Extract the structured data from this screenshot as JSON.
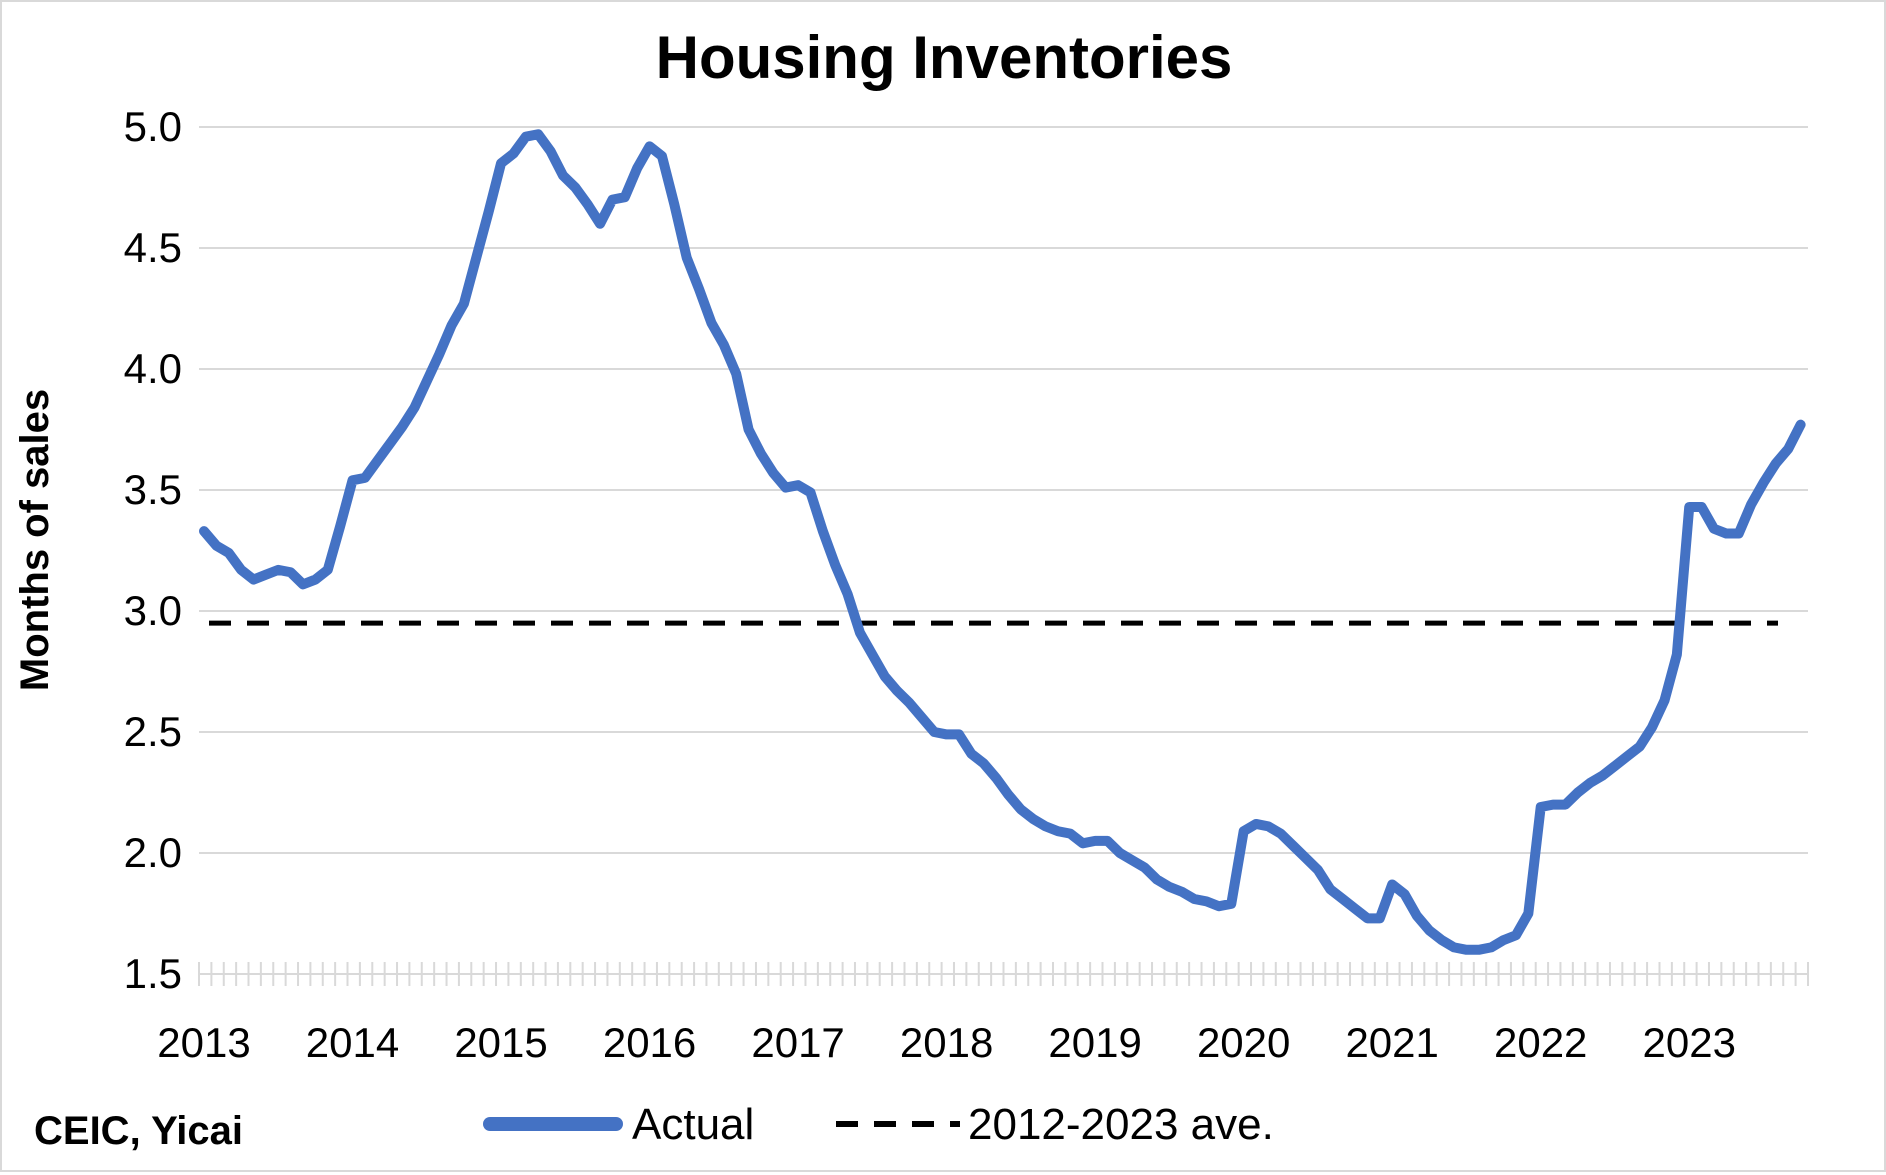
{
  "chart_data": {
    "type": "line",
    "title": "Housing Inventories",
    "xlabel": "",
    "ylabel": "Months of sales",
    "ylim": [
      1.5,
      5.0
    ],
    "yticks": [
      "5.0",
      "4.5",
      "4.0",
      "3.5",
      "3.0",
      "2.5",
      "2.0",
      "1.5"
    ],
    "xticks": [
      "2013",
      "2014",
      "2015",
      "2016",
      "2017",
      "2018",
      "2019",
      "2020",
      "2021",
      "2022",
      "2023"
    ],
    "grid": "horizontal",
    "legend_position": "bottom",
    "source": "CEIC, Yicai",
    "colors": {
      "actual": "#4472c4",
      "average": "#000000"
    },
    "series": [
      {
        "name": "Actual",
        "style": "solid",
        "start": "2013-01",
        "frequency": "monthly",
        "values": [
          3.33,
          3.27,
          3.24,
          3.17,
          3.13,
          3.15,
          3.17,
          3.16,
          3.11,
          3.13,
          3.17,
          3.35,
          3.54,
          3.55,
          3.62,
          3.69,
          3.76,
          3.84,
          3.95,
          4.06,
          4.18,
          4.27,
          4.46,
          4.65,
          4.85,
          4.89,
          4.96,
          4.97,
          4.9,
          4.8,
          4.75,
          4.68,
          4.6,
          4.7,
          4.71,
          4.83,
          4.92,
          4.88,
          4.68,
          4.46,
          4.33,
          4.19,
          4.1,
          3.98,
          3.75,
          3.65,
          3.57,
          3.51,
          3.52,
          3.49,
          3.33,
          3.19,
          3.07,
          2.91,
          2.82,
          2.73,
          2.67,
          2.62,
          2.56,
          2.5,
          2.49,
          2.49,
          2.41,
          2.37,
          2.31,
          2.24,
          2.18,
          2.14,
          2.11,
          2.09,
          2.08,
          2.04,
          2.05,
          2.05,
          2.0,
          1.97,
          1.94,
          1.89,
          1.86,
          1.84,
          1.81,
          1.8,
          1.78,
          1.79,
          2.09,
          2.12,
          2.11,
          2.08,
          2.03,
          1.98,
          1.93,
          1.85,
          1.81,
          1.77,
          1.73,
          1.73,
          1.87,
          1.83,
          1.74,
          1.68,
          1.64,
          1.61,
          1.6,
          1.6,
          1.61,
          1.64,
          1.66,
          1.75,
          2.19,
          2.2,
          2.2,
          2.25,
          2.29,
          2.32,
          2.36,
          2.4,
          2.44,
          2.52,
          2.63,
          2.82,
          3.43,
          3.43,
          3.34,
          3.32,
          3.32,
          3.44,
          3.53,
          3.61,
          3.67,
          3.77
        ]
      },
      {
        "name": "2012-2023 ave.",
        "style": "dashed",
        "value": 2.95
      }
    ]
  }
}
